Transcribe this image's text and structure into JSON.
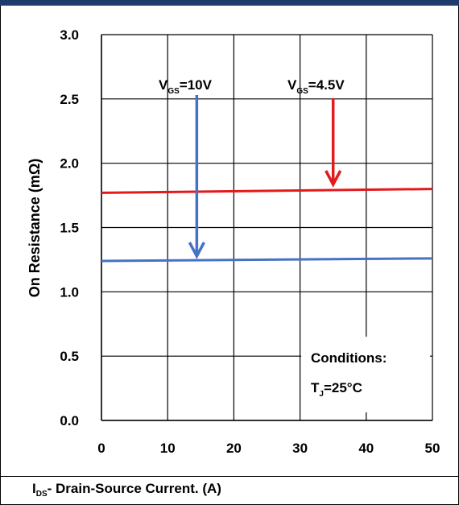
{
  "chart_data": {
    "type": "line",
    "x": [
      0,
      50
    ],
    "series": [
      {
        "name": "VGS=10V",
        "values": [
          1.24,
          1.26
        ],
        "color": "#4472c4"
      },
      {
        "name": "VGS=4.5V",
        "values": [
          1.77,
          1.8
        ],
        "color": "#e31a1c"
      }
    ],
    "xlim": [
      0,
      50
    ],
    "ylim": [
      0,
      3.0
    ],
    "xticks": [
      "0",
      "10",
      "20",
      "30",
      "40",
      "50"
    ],
    "yticks": [
      "0.0",
      "0.5",
      "1.0",
      "1.5",
      "2.0",
      "2.5",
      "3.0"
    ],
    "xlabel_main": "I",
    "xlabel_sub": "DS",
    "xlabel_rest": "- Drain-Source Current. (A)",
    "ylabel": "On Resistance (mΩ)",
    "grid": true,
    "annotations": {
      "vgs10": {
        "main": "V",
        "sub": "GS",
        "rest": "=10V"
      },
      "vgs45": {
        "main": "V",
        "sub": "GS",
        "rest": "=4.5V"
      },
      "cond_title": "Conditions:",
      "cond_tj_main": "T",
      "cond_tj_sub": "J",
      "cond_tj_rest": "=25°C"
    },
    "colors": {
      "header": "#1f3b6e",
      "blue": "#4472c4",
      "red": "#e31a1c"
    }
  }
}
